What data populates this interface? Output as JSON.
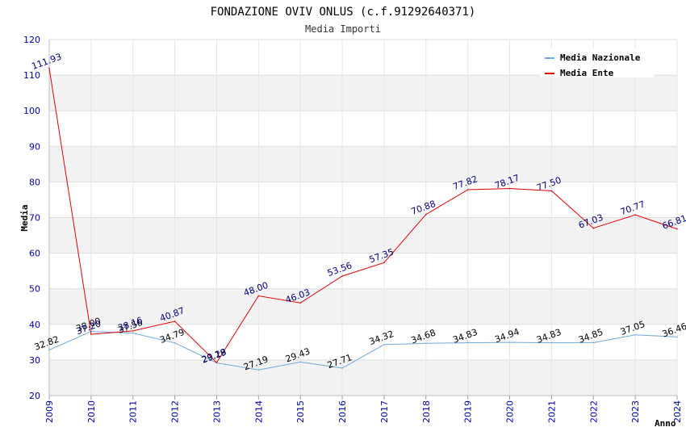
{
  "chart_data": {
    "type": "line",
    "title": "FONDAZIONE OVIV ONLUS (c.f.91292640371)",
    "subtitle": "Media Importi",
    "xlabel": "Anno",
    "ylabel": "Media",
    "ylim": [
      20,
      120
    ],
    "yticks": [
      "20",
      "30",
      "40",
      "50",
      "60",
      "70",
      "80",
      "90",
      "100",
      "110",
      "120"
    ],
    "categories": [
      "2009",
      "2010",
      "2011",
      "2012",
      "2013",
      "2014",
      "2015",
      "2016",
      "2017",
      "2018",
      "2019",
      "2020",
      "2021",
      "2022",
      "2023",
      "2024"
    ],
    "legend_position": "top-right",
    "series": [
      {
        "name": "Media Nazionale",
        "color": "#6fa8dc",
        "label_color": "#000000",
        "values": [
          32.82,
          38.0,
          37.56,
          34.79,
          29.19,
          27.19,
          29.43,
          27.71,
          34.32,
          34.68,
          34.83,
          34.94,
          34.83,
          34.85,
          37.05,
          36.46
        ],
        "labels": [
          "32.82",
          "38.00",
          "37.56",
          "34.79",
          "29.19",
          "27.19",
          "29.43",
          "27.71",
          "34.32",
          "34.68",
          "34.83",
          "34.94",
          "34.83",
          "34.85",
          "37.05",
          "36.46"
        ]
      },
      {
        "name": "Media Ente",
        "color": "#e00000",
        "label_color": "#000080",
        "values": [
          111.93,
          37.2,
          38.16,
          40.87,
          29.28,
          48.0,
          46.03,
          53.56,
          57.35,
          70.88,
          77.82,
          78.17,
          77.5,
          67.03,
          70.77,
          66.81
        ],
        "labels": [
          "111.93",
          "37.20",
          "38.16",
          "40.87",
          "29.28",
          "48.00",
          "46.03",
          "53.56",
          "57.35",
          "70.88",
          "77.82",
          "78.17",
          "77.50",
          "67.03",
          "70.77",
          "66.81"
        ]
      }
    ]
  }
}
